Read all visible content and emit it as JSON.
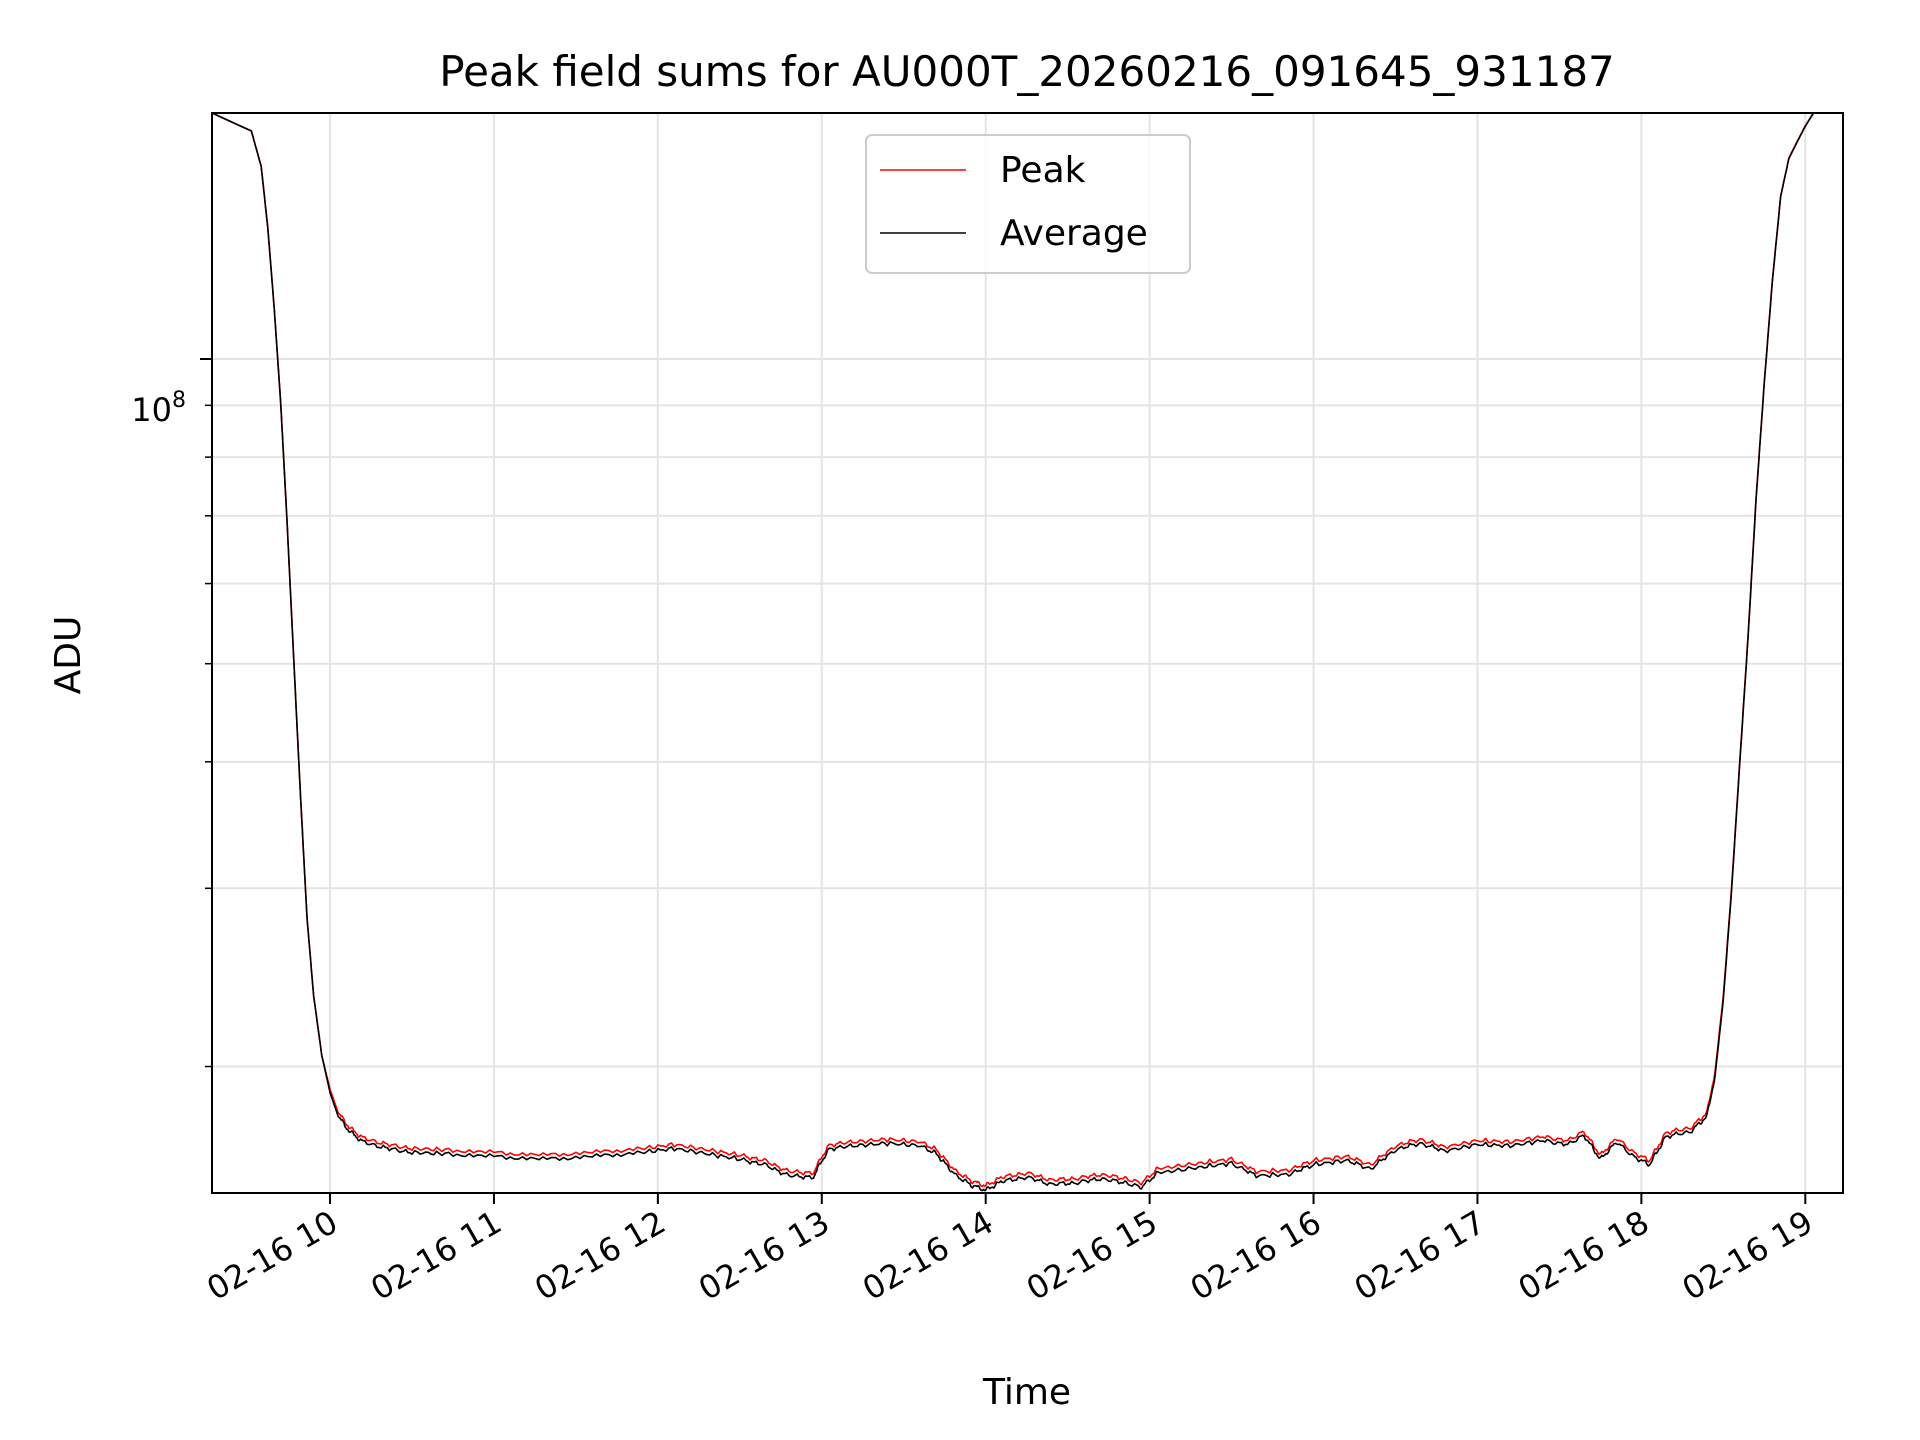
{
  "chart_data": {
    "type": "line",
    "title": "Peak field sums for AU000T_20260216_091645_931187",
    "xlabel": "Time",
    "ylabel": "ADU",
    "x_ticks": [
      "02-16 10",
      "02-16 11",
      "02-16 12",
      "02-16 13",
      "02-16 14",
      "02-16 15",
      "02-16 16",
      "02-16 17",
      "02-16 18",
      "02-16 19"
    ],
    "x_range_hours": [
      9.28,
      19.23
    ],
    "y_scale": "log",
    "y_range": [
      15000000,
      175000000
    ],
    "y_major_tick": {
      "value": 100000000,
      "base": "10",
      "exponent": "8"
    },
    "y_minor_gridlines": [
      20000000,
      30000000,
      40000000,
      50000000,
      60000000,
      70000000,
      80000000,
      90000000
    ],
    "grid": true,
    "legend": {
      "position": "top-center",
      "entries": [
        "Peak",
        "Average"
      ]
    },
    "series": [
      {
        "name": "Peak",
        "color": "#ff0000",
        "keypoints": [
          [
            9.28,
            175000000
          ],
          [
            9.52,
            168000000
          ],
          [
            9.58,
            155000000
          ],
          [
            9.62,
            135000000
          ],
          [
            9.66,
            112000000
          ],
          [
            9.7,
            90000000
          ],
          [
            9.74,
            68000000
          ],
          [
            9.78,
            50000000
          ],
          [
            9.82,
            37000000
          ],
          [
            9.86,
            28000000
          ],
          [
            9.9,
            23500000
          ],
          [
            9.95,
            20500000
          ],
          [
            10.0,
            19000000
          ],
          [
            10.05,
            18000000
          ],
          [
            10.12,
            17400000
          ],
          [
            10.2,
            17000000
          ],
          [
            10.35,
            16750000
          ],
          [
            10.5,
            16600000
          ],
          [
            10.7,
            16550000
          ],
          [
            11.0,
            16450000
          ],
          [
            11.3,
            16350000
          ],
          [
            11.6,
            16450000
          ],
          [
            11.9,
            16600000
          ],
          [
            12.1,
            16750000
          ],
          [
            12.3,
            16550000
          ],
          [
            12.5,
            16350000
          ],
          [
            12.65,
            16150000
          ],
          [
            12.8,
            15750000
          ],
          [
            12.95,
            15700000
          ],
          [
            13.0,
            16300000
          ],
          [
            13.05,
            16750000
          ],
          [
            13.2,
            16850000
          ],
          [
            13.4,
            16950000
          ],
          [
            13.6,
            16850000
          ],
          [
            13.7,
            16550000
          ],
          [
            13.75,
            16200000
          ],
          [
            13.82,
            15750000
          ],
          [
            13.92,
            15400000
          ],
          [
            14.0,
            15250000
          ],
          [
            14.1,
            15550000
          ],
          [
            14.25,
            15700000
          ],
          [
            14.4,
            15450000
          ],
          [
            14.55,
            15500000
          ],
          [
            14.7,
            15650000
          ],
          [
            14.85,
            15500000
          ],
          [
            14.95,
            15350000
          ],
          [
            15.05,
            15850000
          ],
          [
            15.3,
            16050000
          ],
          [
            15.5,
            16200000
          ],
          [
            15.65,
            15750000
          ],
          [
            15.85,
            15800000
          ],
          [
            16.0,
            16150000
          ],
          [
            16.2,
            16300000
          ],
          [
            16.35,
            16000000
          ],
          [
            16.5,
            16700000
          ],
          [
            16.65,
            16950000
          ],
          [
            16.8,
            16650000
          ],
          [
            17.0,
            16900000
          ],
          [
            17.2,
            16850000
          ],
          [
            17.4,
            17050000
          ],
          [
            17.55,
            16900000
          ],
          [
            17.65,
            17250000
          ],
          [
            17.75,
            16350000
          ],
          [
            17.85,
            17000000
          ],
          [
            17.95,
            16450000
          ],
          [
            18.05,
            16150000
          ],
          [
            18.15,
            17200000
          ],
          [
            18.3,
            17400000
          ],
          [
            18.4,
            18000000
          ],
          [
            18.45,
            19800000
          ],
          [
            18.5,
            23500000
          ],
          [
            18.55,
            30000000
          ],
          [
            18.6,
            40000000
          ],
          [
            18.65,
            53000000
          ],
          [
            18.7,
            73000000
          ],
          [
            18.75,
            95000000
          ],
          [
            18.8,
            120000000
          ],
          [
            18.85,
            145000000
          ],
          [
            18.9,
            158000000
          ],
          [
            18.95,
            164000000
          ],
          [
            19.0,
            170000000
          ],
          [
            19.05,
            175000000
          ],
          [
            19.23,
            175000000
          ]
        ]
      },
      {
        "name": "Average",
        "color": "#000000",
        "keypoints": [
          [
            9.28,
            175000000
          ],
          [
            9.52,
            168000000
          ],
          [
            9.58,
            155000000
          ],
          [
            9.62,
            135000000
          ],
          [
            9.66,
            112000000
          ],
          [
            9.7,
            90000000
          ],
          [
            9.74,
            68000000
          ],
          [
            9.78,
            50000000
          ],
          [
            9.82,
            37000000
          ],
          [
            9.86,
            28000000
          ],
          [
            9.9,
            23500000
          ],
          [
            9.95,
            20500000
          ],
          [
            10.0,
            18850000
          ],
          [
            10.05,
            17850000
          ],
          [
            10.12,
            17250000
          ],
          [
            10.2,
            16850000
          ],
          [
            10.35,
            16600000
          ],
          [
            10.5,
            16450000
          ],
          [
            10.7,
            16400000
          ],
          [
            11.0,
            16300000
          ],
          [
            11.3,
            16200000
          ],
          [
            11.6,
            16300000
          ],
          [
            11.9,
            16450000
          ],
          [
            12.1,
            16600000
          ],
          [
            12.3,
            16400000
          ],
          [
            12.5,
            16200000
          ],
          [
            12.65,
            16000000
          ],
          [
            12.8,
            15600000
          ],
          [
            12.95,
            15550000
          ],
          [
            13.0,
            16150000
          ],
          [
            13.05,
            16600000
          ],
          [
            13.2,
            16700000
          ],
          [
            13.4,
            16800000
          ],
          [
            13.6,
            16700000
          ],
          [
            13.7,
            16400000
          ],
          [
            13.75,
            16050000
          ],
          [
            13.82,
            15600000
          ],
          [
            13.92,
            15250000
          ],
          [
            14.0,
            15100000
          ],
          [
            14.1,
            15400000
          ],
          [
            14.25,
            15550000
          ],
          [
            14.4,
            15300000
          ],
          [
            14.55,
            15350000
          ],
          [
            14.7,
            15500000
          ],
          [
            14.85,
            15350000
          ],
          [
            14.95,
            15200000
          ],
          [
            15.05,
            15700000
          ],
          [
            15.3,
            15900000
          ],
          [
            15.5,
            16050000
          ],
          [
            15.65,
            15600000
          ],
          [
            15.85,
            15650000
          ],
          [
            16.0,
            16000000
          ],
          [
            16.2,
            16150000
          ],
          [
            16.35,
            15850000
          ],
          [
            16.5,
            16550000
          ],
          [
            16.65,
            16800000
          ],
          [
            16.8,
            16500000
          ],
          [
            17.0,
            16750000
          ],
          [
            17.2,
            16700000
          ],
          [
            17.4,
            16900000
          ],
          [
            17.55,
            16750000
          ],
          [
            17.65,
            17100000
          ],
          [
            17.75,
            16200000
          ],
          [
            17.85,
            16850000
          ],
          [
            17.95,
            16300000
          ],
          [
            18.05,
            16000000
          ],
          [
            18.15,
            17050000
          ],
          [
            18.3,
            17250000
          ],
          [
            18.4,
            17850000
          ],
          [
            18.45,
            19600000
          ],
          [
            18.5,
            23300000
          ],
          [
            18.55,
            29800000
          ],
          [
            18.6,
            39800000
          ],
          [
            18.65,
            52800000
          ],
          [
            18.7,
            72800000
          ],
          [
            18.75,
            94800000
          ],
          [
            18.8,
            119800000
          ],
          [
            18.85,
            144800000
          ],
          [
            18.9,
            157800000
          ],
          [
            18.95,
            163800000
          ],
          [
            19.0,
            169800000
          ],
          [
            19.05,
            175000000
          ],
          [
            19.23,
            175000000
          ]
        ]
      }
    ]
  }
}
